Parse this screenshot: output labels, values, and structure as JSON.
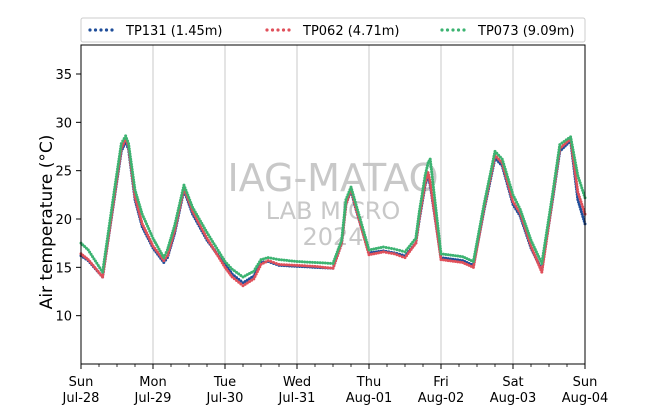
{
  "chart_data": {
    "type": "line",
    "title": "",
    "xlabel": "",
    "ylabel": "Air temperature (°C)",
    "ylim": [
      5,
      38
    ],
    "xlim_days": [
      0,
      7
    ],
    "grid": "vertical",
    "legend_placement": "top",
    "yticks": [
      10,
      15,
      20,
      25,
      30,
      35
    ],
    "xticks": [
      {
        "day": 0,
        "top": "Sun",
        "bottom": "Jul-28"
      },
      {
        "day": 1,
        "top": "Mon",
        "bottom": "Jul-29"
      },
      {
        "day": 2,
        "top": "Tue",
        "bottom": "Jul-30"
      },
      {
        "day": 3,
        "top": "Wed",
        "bottom": "Jul-31"
      },
      {
        "day": 4,
        "top": "Thu",
        "bottom": "Aug-01"
      },
      {
        "day": 5,
        "top": "Fri",
        "bottom": "Aug-02"
      },
      {
        "day": 6,
        "top": "Sat",
        "bottom": "Aug-03"
      },
      {
        "day": 7,
        "top": "Sun",
        "bottom": "Aug-04"
      }
    ],
    "watermark": [
      "IAG-MATAO",
      "LAB MICRO",
      "2024"
    ],
    "series": [
      {
        "name": "TP131 (1.45m)",
        "color": "#1f4e9a",
        "x_days": [
          0.0,
          0.1,
          0.3,
          0.46,
          0.56,
          0.62,
          0.66,
          0.75,
          0.85,
          1.0,
          1.15,
          1.2,
          1.3,
          1.43,
          1.55,
          1.75,
          2.0,
          2.1,
          2.25,
          2.4,
          2.5,
          2.6,
          2.75,
          3.0,
          3.25,
          3.5,
          3.62,
          3.68,
          3.75,
          3.8,
          4.0,
          4.2,
          4.35,
          4.5,
          4.65,
          4.7,
          4.78,
          4.82,
          4.85,
          5.0,
          5.2,
          5.3,
          5.45,
          5.6,
          5.75,
          5.85,
          6.0,
          6.1,
          6.25,
          6.4,
          6.55,
          6.65,
          6.8,
          6.9,
          7.0
        ],
        "values": [
          16.2,
          15.7,
          14.0,
          22.0,
          27.0,
          28.0,
          27.2,
          22.0,
          19.2,
          17.0,
          15.5,
          16.0,
          18.5,
          23.0,
          20.5,
          17.8,
          15.3,
          14.3,
          13.4,
          14.1,
          15.5,
          15.6,
          15.2,
          15.1,
          15.0,
          14.9,
          17.5,
          21.5,
          23.0,
          21.5,
          16.5,
          16.7,
          16.5,
          16.2,
          17.5,
          20.0,
          23.5,
          24.5,
          23.5,
          16.0,
          15.8,
          15.7,
          15.2,
          21.0,
          26.3,
          25.5,
          21.5,
          20.3,
          17.0,
          14.7,
          22.0,
          27.0,
          28.1,
          22.0,
          19.5
        ]
      },
      {
        "name": "TP062 (4.71m)",
        "color": "#e0505a",
        "x_days": [
          0.0,
          0.1,
          0.3,
          0.46,
          0.56,
          0.62,
          0.66,
          0.75,
          0.85,
          1.0,
          1.15,
          1.2,
          1.3,
          1.43,
          1.55,
          1.75,
          2.0,
          2.1,
          2.25,
          2.4,
          2.5,
          2.6,
          2.75,
          3.0,
          3.25,
          3.5,
          3.62,
          3.68,
          3.75,
          3.8,
          4.0,
          4.2,
          4.35,
          4.5,
          4.65,
          4.7,
          4.78,
          4.82,
          4.85,
          5.0,
          5.2,
          5.3,
          5.45,
          5.6,
          5.75,
          5.85,
          6.0,
          6.1,
          6.25,
          6.4,
          6.55,
          6.65,
          6.8,
          6.9,
          7.0
        ],
        "values": [
          16.4,
          15.8,
          14.0,
          22.2,
          27.3,
          28.3,
          27.5,
          22.3,
          19.5,
          17.2,
          15.7,
          16.2,
          18.8,
          23.2,
          20.8,
          18.0,
          15.0,
          14.0,
          13.1,
          13.8,
          15.3,
          15.7,
          15.3,
          15.2,
          15.1,
          14.9,
          17.5,
          21.5,
          23.2,
          21.6,
          16.3,
          16.6,
          16.4,
          16.0,
          17.5,
          20.2,
          23.7,
          24.8,
          23.8,
          15.8,
          15.6,
          15.5,
          15.0,
          21.2,
          26.6,
          25.8,
          21.8,
          20.6,
          17.2,
          14.5,
          22.2,
          27.3,
          28.3,
          22.8,
          20.5
        ]
      },
      {
        "name": "TP073 (9.09m)",
        "color": "#3cb371",
        "x_days": [
          0.0,
          0.1,
          0.3,
          0.46,
          0.56,
          0.62,
          0.66,
          0.75,
          0.85,
          1.0,
          1.15,
          1.2,
          1.3,
          1.43,
          1.55,
          1.75,
          2.0,
          2.1,
          2.25,
          2.4,
          2.5,
          2.6,
          2.75,
          3.0,
          3.25,
          3.5,
          3.62,
          3.68,
          3.75,
          3.8,
          4.0,
          4.2,
          4.35,
          4.5,
          4.65,
          4.7,
          4.78,
          4.82,
          4.85,
          5.0,
          5.2,
          5.3,
          5.45,
          5.6,
          5.75,
          5.85,
          6.0,
          6.1,
          6.25,
          6.4,
          6.55,
          6.65,
          6.8,
          6.9,
          7.0
        ],
        "values": [
          17.5,
          16.8,
          14.5,
          22.8,
          27.8,
          28.6,
          27.8,
          23.0,
          20.5,
          18.0,
          16.0,
          16.8,
          19.3,
          23.5,
          21.2,
          18.6,
          15.6,
          14.8,
          14.0,
          14.6,
          15.8,
          16.0,
          15.8,
          15.6,
          15.5,
          15.4,
          17.8,
          22.0,
          23.3,
          22.0,
          16.8,
          17.1,
          16.9,
          16.6,
          18.0,
          20.8,
          24.5,
          25.8,
          26.2,
          16.4,
          16.2,
          16.1,
          15.6,
          21.6,
          27.0,
          26.2,
          22.5,
          21.0,
          17.8,
          15.4,
          22.6,
          27.7,
          28.5,
          24.5,
          22.2
        ]
      }
    ]
  }
}
